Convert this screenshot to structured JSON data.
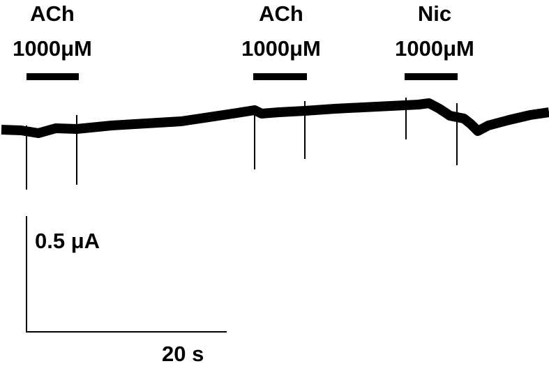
{
  "applications": [
    {
      "agent": "ACh",
      "concentration": "1000μM"
    },
    {
      "agent": "ACh",
      "concentration": "1000μM"
    },
    {
      "agent": "Nic",
      "concentration": "1000μM"
    }
  ],
  "scale_bar": {
    "current": "0.5 μA",
    "time": "20 s"
  }
}
